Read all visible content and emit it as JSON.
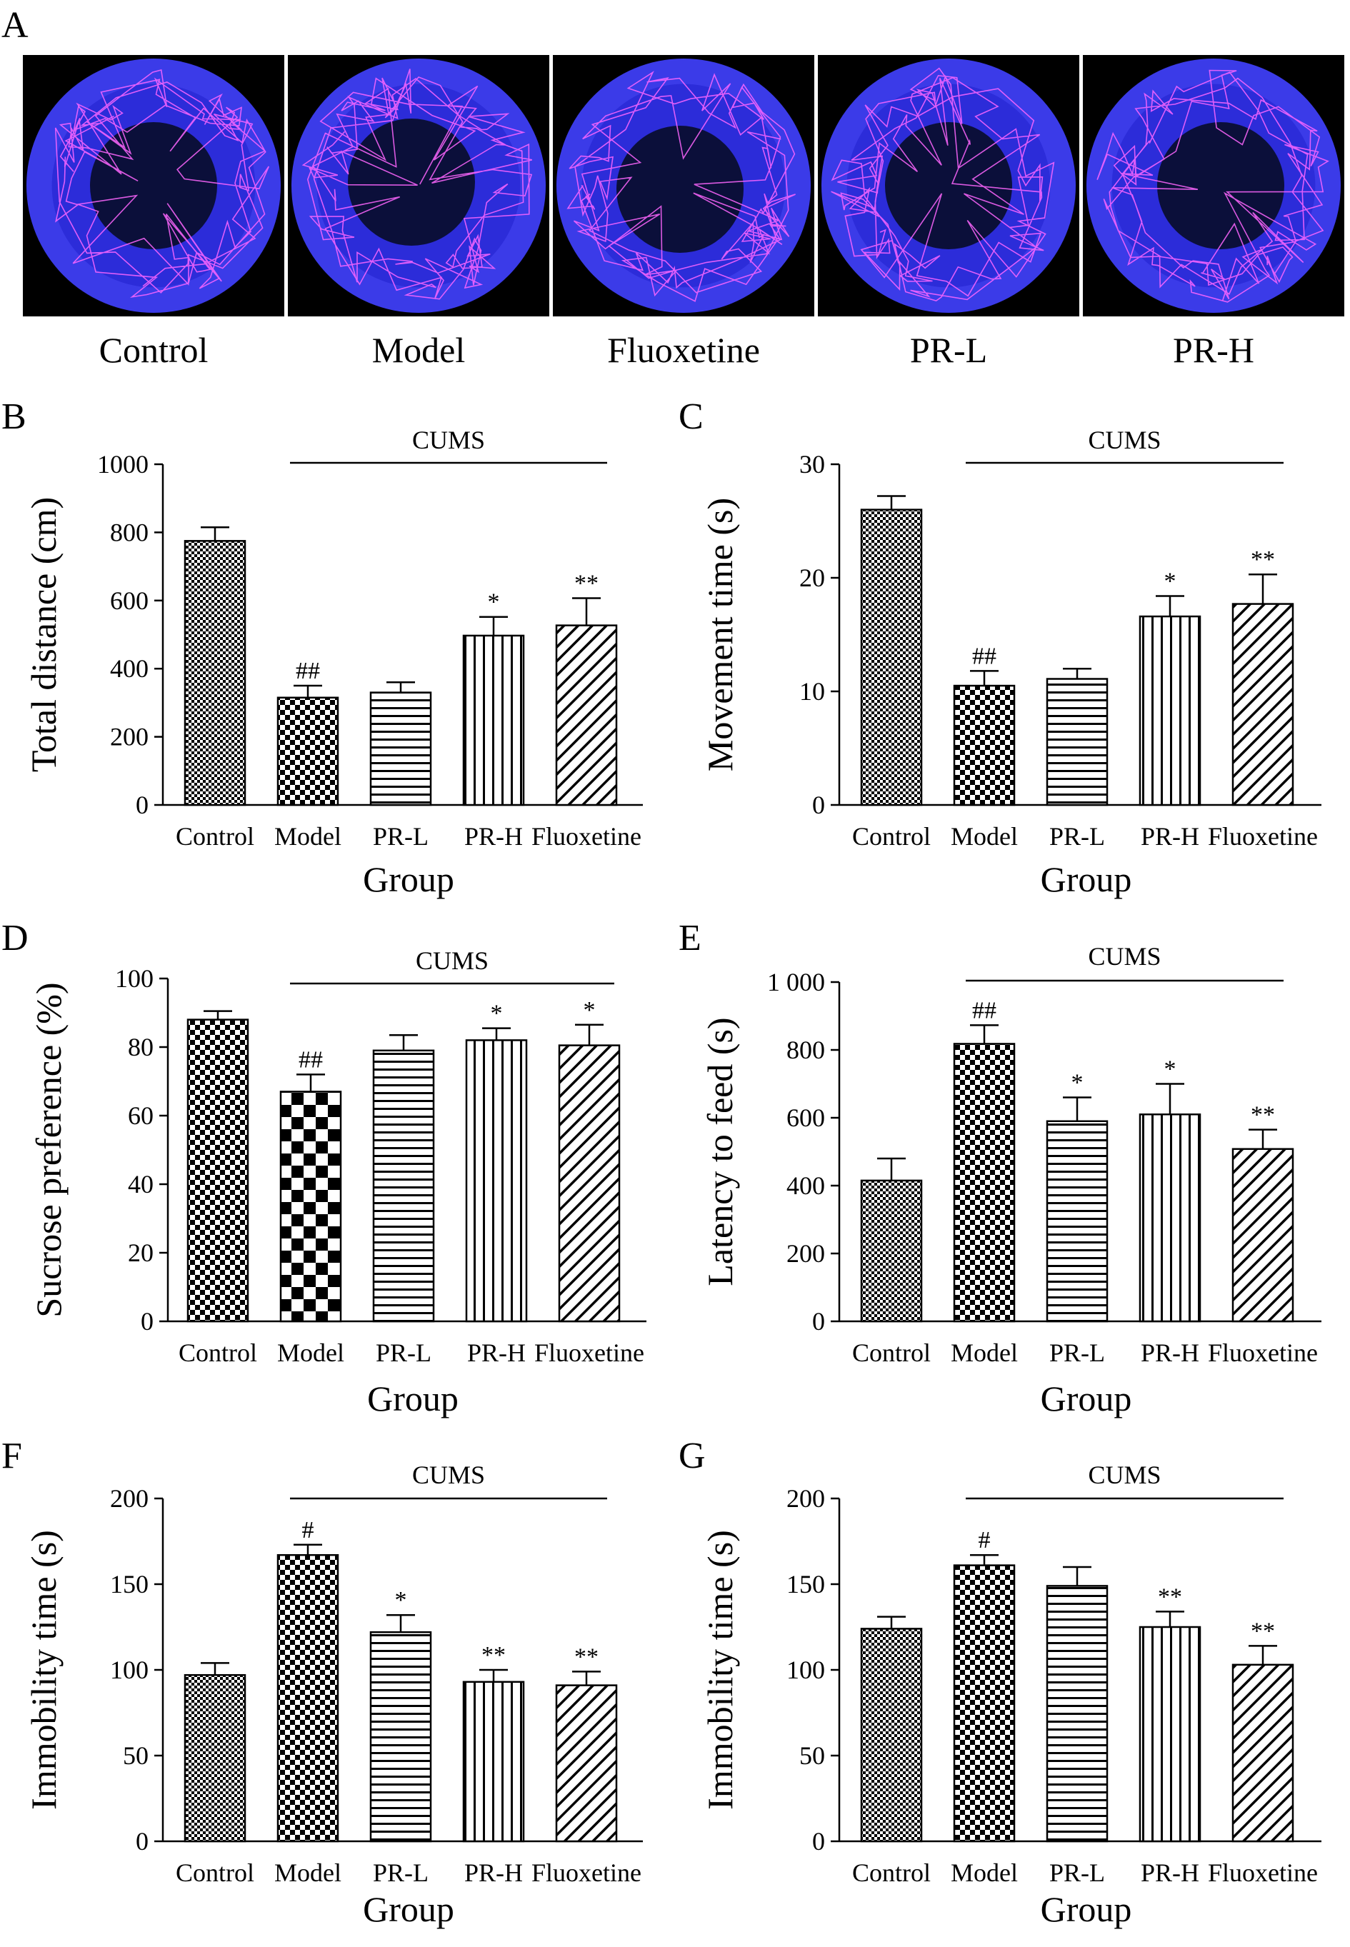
{
  "figure": {
    "panel_a": {
      "letter": "A",
      "captions": [
        "Control",
        "Model",
        "Fluoxetine",
        "PR-L",
        "PR-H"
      ],
      "colors": {
        "background": "#000000",
        "arena_outer": "#3b3be8",
        "arena_ring": "#2c2cd9",
        "arena_center": "#0b0f3a",
        "track": "#ff66ff"
      }
    }
  },
  "chart_data": [
    {
      "panel": "B",
      "type": "bar",
      "categories": [
        "Control",
        "Model",
        "PR-L",
        "PR-H",
        "Fluoxetine"
      ],
      "values": [
        775,
        315,
        330,
        497,
        527
      ],
      "errors": [
        40,
        35,
        30,
        55,
        80
      ],
      "annotations": [
        "",
        "##",
        "",
        "*",
        "**"
      ],
      "ylim": [
        0,
        1000
      ],
      "yticks": [
        "0",
        "200",
        "400",
        "600",
        "800",
        "1000"
      ],
      "ytick_values": [
        0,
        200,
        400,
        600,
        800,
        1000
      ],
      "ylabel": "Total distance (cm)",
      "xlabel": "Group",
      "bracket_label": "CUMS"
    },
    {
      "panel": "C",
      "type": "bar",
      "categories": [
        "Control",
        "Model",
        "PR-L",
        "PR-H",
        "Fluoxetine"
      ],
      "values": [
        26,
        10.5,
        11.1,
        16.6,
        17.7
      ],
      "errors": [
        1.2,
        1.3,
        0.9,
        1.8,
        2.6
      ],
      "annotations": [
        "",
        "##",
        "",
        "*",
        "**"
      ],
      "ylim": [
        0,
        30
      ],
      "yticks": [
        "0",
        "10",
        "20",
        "30"
      ],
      "ytick_values": [
        0,
        10,
        20,
        30
      ],
      "ylabel": "Movement time (s)",
      "xlabel": "Group",
      "bracket_label": "CUMS"
    },
    {
      "panel": "D",
      "type": "bar",
      "categories": [
        "Control",
        "Model",
        "PR-L",
        "PR-H",
        "Fluoxetine"
      ],
      "values": [
        88,
        67,
        79,
        82,
        80.5
      ],
      "errors": [
        2.5,
        5,
        4.5,
        3.5,
        6
      ],
      "annotations": [
        "",
        "##",
        "",
        "*",
        "*"
      ],
      "ylim": [
        0,
        100
      ],
      "yticks": [
        "0",
        "20",
        "40",
        "60",
        "80",
        "100"
      ],
      "ytick_values": [
        0,
        20,
        40,
        60,
        80,
        100
      ],
      "ylabel": "Sucrose preference (%)",
      "xlabel": "Group",
      "bracket_label": "CUMS"
    },
    {
      "panel": "E",
      "type": "bar",
      "categories": [
        "Control",
        "Model",
        "PR-L",
        "PR-H",
        "Fluoxetine"
      ],
      "values": [
        415,
        818,
        590,
        610,
        508
      ],
      "errors": [
        65,
        55,
        70,
        90,
        57
      ],
      "annotations": [
        "",
        "##",
        "*",
        "*",
        "**"
      ],
      "ylim": [
        0,
        1000
      ],
      "yticks": [
        "0",
        "200",
        "400",
        "600",
        "800",
        "1 000"
      ],
      "ytick_values": [
        0,
        200,
        400,
        600,
        800,
        1000
      ],
      "ylabel": "Latency to feed (s)",
      "xlabel": "Group",
      "bracket_label": "CUMS"
    },
    {
      "panel": "F",
      "type": "bar",
      "categories": [
        "Control",
        "Model",
        "PR-L",
        "PR-H",
        "Fluoxetine"
      ],
      "values": [
        97,
        167,
        122,
        93,
        91
      ],
      "errors": [
        7,
        6,
        10,
        7,
        8
      ],
      "annotations": [
        "",
        "#",
        "*",
        "**",
        "**"
      ],
      "ylim": [
        0,
        200
      ],
      "yticks": [
        "0",
        "50",
        "100",
        "150",
        "200"
      ],
      "ytick_values": [
        0,
        50,
        100,
        150,
        200
      ],
      "ylabel": "Immobility time (s)",
      "xlabel": "Group",
      "bracket_label": "CUMS"
    },
    {
      "panel": "G",
      "type": "bar",
      "categories": [
        "Control",
        "Model",
        "PR-L",
        "PR-H",
        "Fluoxetine"
      ],
      "values": [
        124,
        161,
        149,
        125,
        103
      ],
      "errors": [
        7,
        6,
        11,
        9,
        11
      ],
      "annotations": [
        "",
        "#",
        "",
        "**",
        "**"
      ],
      "ylim": [
        0,
        200
      ],
      "yticks": [
        "0",
        "50",
        "100",
        "150",
        "200"
      ],
      "ytick_values": [
        0,
        50,
        100,
        150,
        200
      ],
      "ylabel": "Immobility time (s)",
      "xlabel": "Group",
      "bracket_label": "CUMS"
    }
  ]
}
